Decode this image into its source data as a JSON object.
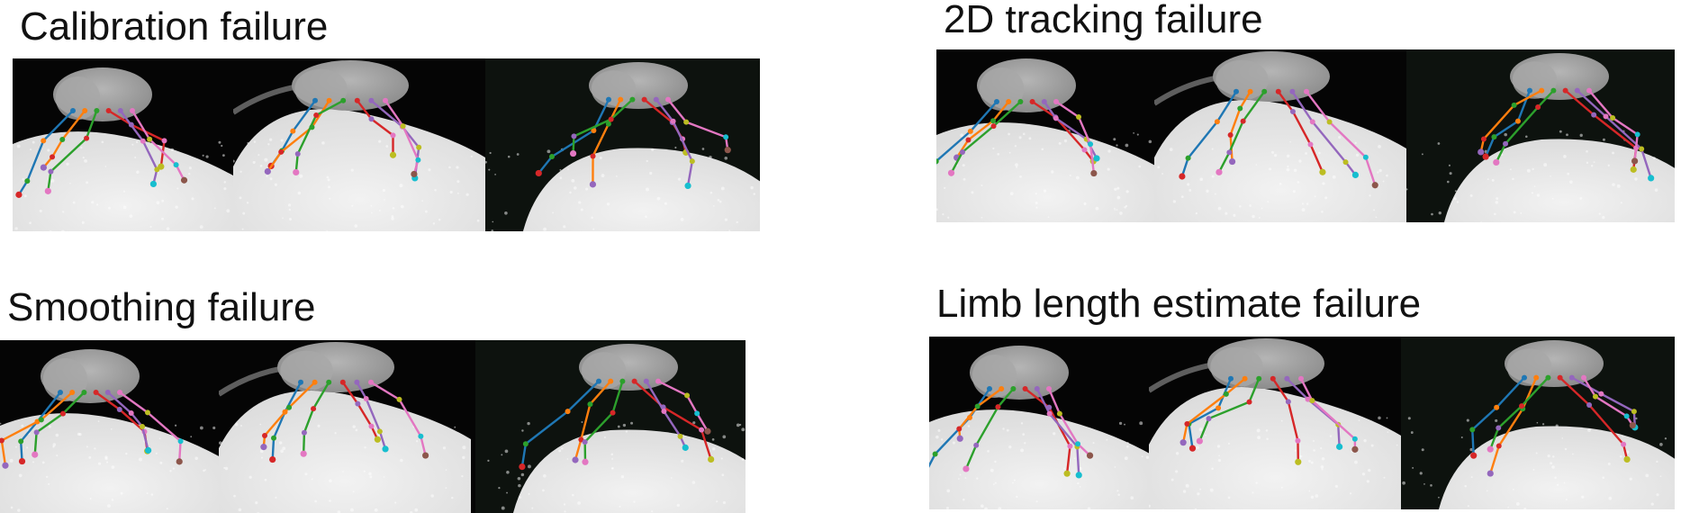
{
  "panels": [
    {
      "id": "calibration",
      "title": "Calibration failure"
    },
    {
      "id": "tracking2d",
      "title": "2D tracking failure"
    },
    {
      "id": "smoothing",
      "title": "Smoothing failure"
    },
    {
      "id": "limblength",
      "title": "Limb length estimate failure"
    }
  ],
  "colors": {
    "background_floor": "#dcdcdc",
    "fly_body": "#8c8c8c",
    "leg_colors": [
      "#1f77b4",
      "#ff7f0e",
      "#2ca02c",
      "#d62728",
      "#9467bd",
      "#e377c2",
      "#bcbd22",
      "#17becf",
      "#8c564b"
    ]
  }
}
